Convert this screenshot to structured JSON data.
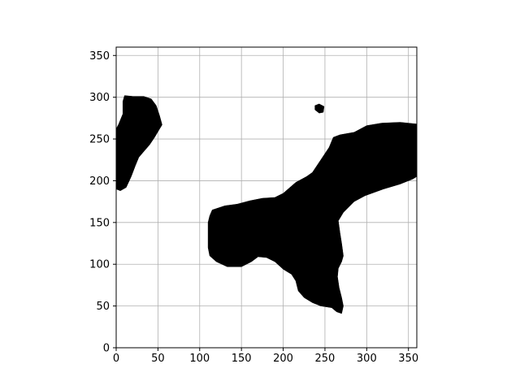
{
  "chart_data": {
    "type": "heatmap",
    "title": "",
    "xlabel": "",
    "ylabel": "",
    "xlim": [
      0,
      360
    ],
    "ylim": [
      0,
      360
    ],
    "xticks": [
      0,
      50,
      100,
      150,
      200,
      250,
      300,
      350
    ],
    "yticks": [
      0,
      50,
      100,
      150,
      200,
      250,
      300,
      350
    ],
    "grid": true,
    "colors": {
      "fill": "#000000",
      "background": "#ffffff",
      "grid": "#b0b0b0",
      "axis": "#000000"
    },
    "regions": [
      {
        "name": "left-edge-region",
        "polygon": [
          [
            0,
            190
          ],
          [
            5,
            188
          ],
          [
            12,
            192
          ],
          [
            18,
            205
          ],
          [
            23,
            218
          ],
          [
            27,
            228
          ],
          [
            33,
            235
          ],
          [
            40,
            243
          ],
          [
            46,
            252
          ],
          [
            52,
            262
          ],
          [
            55,
            267
          ],
          [
            52,
            278
          ],
          [
            48,
            290
          ],
          [
            42,
            298
          ],
          [
            33,
            301
          ],
          [
            20,
            301
          ],
          [
            10,
            302
          ],
          [
            8,
            295
          ],
          [
            8,
            280
          ],
          [
            3,
            268
          ],
          [
            0,
            262
          ]
        ]
      },
      {
        "name": "small-blob",
        "polygon": [
          [
            238,
            285
          ],
          [
            238,
            290
          ],
          [
            243,
            292
          ],
          [
            249,
            289
          ],
          [
            248,
            282
          ],
          [
            243,
            281
          ]
        ]
      },
      {
        "name": "main-region",
        "polygon": [
          [
            110,
            150
          ],
          [
            110,
            120
          ],
          [
            112,
            110
          ],
          [
            120,
            103
          ],
          [
            133,
            97
          ],
          [
            150,
            97
          ],
          [
            162,
            103
          ],
          [
            170,
            109
          ],
          [
            180,
            108
          ],
          [
            190,
            103
          ],
          [
            200,
            94
          ],
          [
            210,
            88
          ],
          [
            215,
            80
          ],
          [
            218,
            68
          ],
          [
            225,
            60
          ],
          [
            235,
            54
          ],
          [
            245,
            50
          ],
          [
            258,
            48
          ],
          [
            264,
            43
          ],
          [
            270,
            41
          ],
          [
            272,
            50
          ],
          [
            270,
            60
          ],
          [
            267,
            72
          ],
          [
            265,
            85
          ],
          [
            266,
            95
          ],
          [
            270,
            103
          ],
          [
            272,
            110
          ],
          [
            270,
            125
          ],
          [
            268,
            138
          ],
          [
            266,
            152
          ],
          [
            272,
            162
          ],
          [
            285,
            175
          ],
          [
            298,
            182
          ],
          [
            320,
            190
          ],
          [
            340,
            196
          ],
          [
            355,
            202
          ],
          [
            360,
            205
          ],
          [
            360,
            268
          ],
          [
            340,
            270
          ],
          [
            318,
            269
          ],
          [
            300,
            266
          ],
          [
            285,
            258
          ],
          [
            268,
            255
          ],
          [
            260,
            252
          ],
          [
            255,
            240
          ],
          [
            245,
            225
          ],
          [
            235,
            210
          ],
          [
            228,
            205
          ],
          [
            215,
            198
          ],
          [
            200,
            185
          ],
          [
            190,
            180
          ],
          [
            175,
            179
          ],
          [
            160,
            176
          ],
          [
            145,
            172
          ],
          [
            130,
            170
          ],
          [
            115,
            165
          ],
          [
            112,
            158
          ]
        ]
      }
    ]
  }
}
